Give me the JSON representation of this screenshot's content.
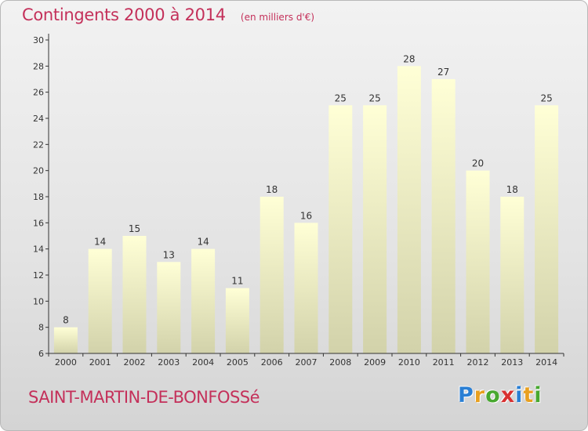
{
  "chart_data": {
    "type": "bar",
    "title": "Contingents 2000 à 2014",
    "subtitle": "(en milliers d'€)",
    "categories": [
      "2000",
      "2001",
      "2002",
      "2003",
      "2004",
      "2005",
      "2006",
      "2007",
      "2008",
      "2009",
      "2010",
      "2011",
      "2012",
      "2013",
      "2014"
    ],
    "values": [
      8,
      14,
      15,
      13,
      14,
      11,
      18,
      16,
      25,
      25,
      28,
      27,
      20,
      18,
      25
    ],
    "ylim": [
      6,
      30
    ],
    "yticks": [
      6,
      8,
      10,
      12,
      14,
      16,
      18,
      20,
      22,
      24,
      26,
      28,
      30
    ],
    "grid": false,
    "xlabel": "",
    "ylabel": ""
  },
  "footer": {
    "commune": "SAINT-MARTIN-DE-BONFOSSé",
    "logo_letters": [
      "P",
      "r",
      "o",
      "x",
      "i",
      "t",
      "i"
    ],
    "logo_colors": [
      "#2a7fd4",
      "#e8a020",
      "#48a830",
      "#d83030",
      "#2a7fd4",
      "#e8a020",
      "#48a830"
    ]
  },
  "colors": {
    "title": "#c4305a",
    "bar_top": "#ffffd6",
    "bar_bottom": "#d2d2aa",
    "axis": "#333333"
  }
}
